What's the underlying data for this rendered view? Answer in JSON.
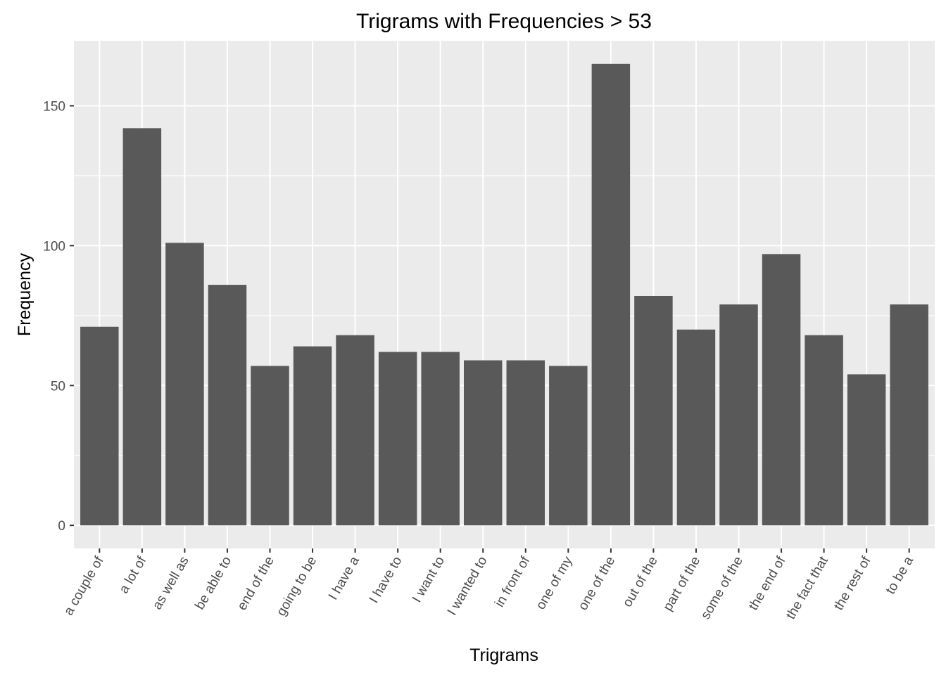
{
  "chart_data": {
    "type": "bar",
    "title": "Trigrams with Frequencies > 53",
    "xlabel": "Trigrams",
    "ylabel": "Frequency",
    "categories": [
      "a couple of",
      "a lot of",
      "as well as",
      "be able to",
      "end of the",
      "going to be",
      "I have a",
      "I have to",
      "I want to",
      "I wanted to",
      "in front of",
      "one of my",
      "one of the",
      "out of the",
      "part of the",
      "some of the",
      "the end of",
      "the fact that",
      "the rest of",
      "to be a"
    ],
    "values": [
      71,
      142,
      101,
      86,
      57,
      64,
      68,
      62,
      62,
      59,
      59,
      57,
      165,
      82,
      70,
      79,
      97,
      68,
      54,
      79
    ],
    "ylim": [
      -8.25,
      173.25
    ],
    "yticks": [
      0,
      50,
      100,
      150
    ],
    "grid": true,
    "colors": {
      "bar": "#595959",
      "panel": "#ebebeb",
      "grid": "#ffffff",
      "tick": "#333333",
      "tick_label": "#4d4d4d"
    }
  }
}
